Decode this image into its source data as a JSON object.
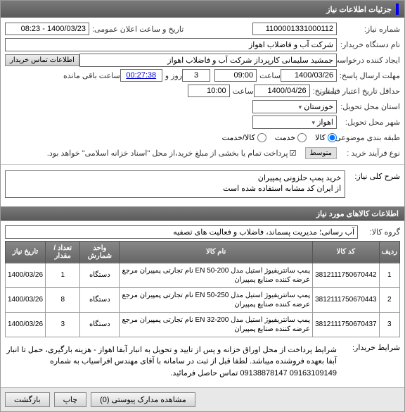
{
  "headerTitle": "جزئیات اطلاعات نیاز",
  "form": {
    "needNumberLbl": "شماره نیاز:",
    "needNumber": "1100001331000112",
    "pubDateLbl": "تاریخ و ساعت اعلان عمومی:",
    "pubDate": "1400/03/23 - 08:23",
    "buyerOrgLbl": "نام دستگاه خریدار:",
    "buyerOrg": "شرکت آب و فاضلاب اهواز",
    "creatorLbl": "ایجاد کننده درخواست:",
    "creator": "جمشید سلیمانی کارپرداز شرکت آب و فاضلاب اهواز",
    "contactBtn": "اطلاعات تماس خریدار",
    "answerDeadlineLbl": "مهلت ارسال پاسخ:",
    "answerDate": "1400/03/26",
    "hourLbl": "ساعت",
    "answerHour": "09:00",
    "daysRemain": "3",
    "dayWord": "روز و",
    "timeRemain": "00:27:38",
    "remainLbl": "ساعت باقی مانده",
    "validLbl": "حداقل تاریخ اعتبار قیمت:",
    "toDateLbl": "تا تاریخ:",
    "validDate": "1400/04/26",
    "validHour": "10:00",
    "provinceLbl": "استان محل تحویل:",
    "province": "خوزستان",
    "cityLbl": "شهر محل تحویل:",
    "city": "اهواز",
    "budgetLbl": "طبقه بندی موضوعی:",
    "budgetGoods": "کالا",
    "budgetService": "خدمت",
    "budgetGoodsService": "کالا/خدمت",
    "procTypeLbl": "نوع فرآیند خرید :",
    "procType": "متوسط",
    "paymentNote": "پرداخت تمام یا بخشی از مبلغ خرید،از محل \"اسناد خزانه اسلامی\" خواهد بود."
  },
  "desc": {
    "lbl": "شرح کلی نیاز:",
    "text": "خرید پمپ حلزونی پمپیران\nاز ایران کد مشابه استفاده شده است"
  },
  "goodsHeader": "اطلاعات کالاهای مورد نیاز",
  "groupLbl": "گروه کالا:",
  "groupVal": "آب رسانی؛ مدیریت پسماند، فاضلاب و فعالیت های تصفیه",
  "table": {
    "cols": [
      "ردیف",
      "کد کالا",
      "نام کالا",
      "واحد شمارش",
      "تعداد / مقدار",
      "تاریخ نیاز"
    ],
    "rows": [
      {
        "n": "1",
        "code": "3812111750670442",
        "name": "پمپ سانتریفیوژ استیل مدل EN 50-200 نام تجارتی پمپیران مرجع عرضه کننده صنایع پمپیران",
        "unit": "دستگاه",
        "qty": "1",
        "date": "1400/03/26"
      },
      {
        "n": "2",
        "code": "3812111750670443",
        "name": "پمپ سانتریفیوژ استیل مدل EN 50-250 نام تجارتی پمپیران مرجع عرضه کننده صنایع پمپیران",
        "unit": "دستگاه",
        "qty": "8",
        "date": "1400/03/26"
      },
      {
        "n": "3",
        "code": "3812111750670437",
        "name": "پمپ سانتریفیوژ استیل مدل EN 32-200 نام تجارتی پمپیران مرجع عرضه کننده صنایع پمپیران",
        "unit": "دستگاه",
        "qty": "3",
        "date": "1400/03/26"
      }
    ]
  },
  "buyerTermsLbl": "شرایط خریدار:",
  "buyerTerms": "شرایط پرداخت از محل اوراق خزانه و پس از تایید  و تحویل به انبار آبفا اهواز - هزینه بارگیری، حمل تا انبار آبفا بعهده فروشنده میباشد. لطفا قبل از ثبت در سامانه با آقای مهندس افراسیاب به شماره 09163109149 09138878147 تماس حاصل فرمائید.",
  "footer": {
    "attach": "مشاهده مدارک پیوستی  (0)",
    "print": "چاپ",
    "back": "بازگشت"
  }
}
